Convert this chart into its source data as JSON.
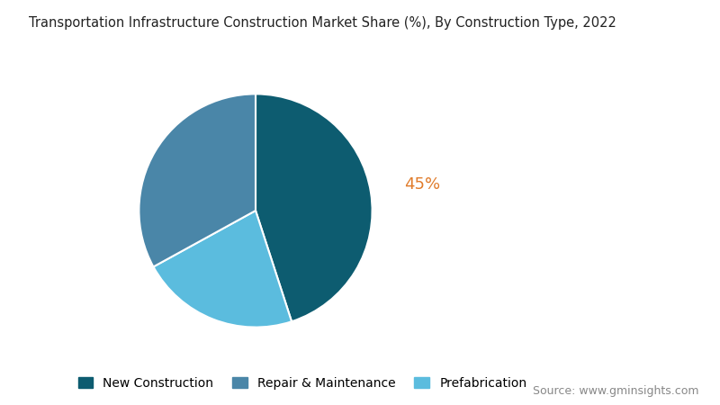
{
  "title": "Transportation Infrastructure Construction Market Share (%), By Construction Type, 2022",
  "slices": [
    45,
    22,
    33
  ],
  "labels": [
    "New Construction",
    "Prefabrication",
    "Repair & Maintenance"
  ],
  "legend_labels": [
    "New Construction",
    "Repair & Maintenance",
    "Prefabrication"
  ],
  "colors": [
    "#0d5c70",
    "#5bbcde",
    "#4a86a8"
  ],
  "legend_colors": [
    "#0d5c70",
    "#4a86a8",
    "#5bbcde"
  ],
  "annotated_index": 0,
  "annotated_label": "45%",
  "annotated_color": "#e07b2a",
  "source_text": "Source: www.gminsights.com",
  "title_fontsize": 10.5,
  "legend_fontsize": 10,
  "source_fontsize": 9,
  "background_color": "#ffffff",
  "start_angle": 90
}
